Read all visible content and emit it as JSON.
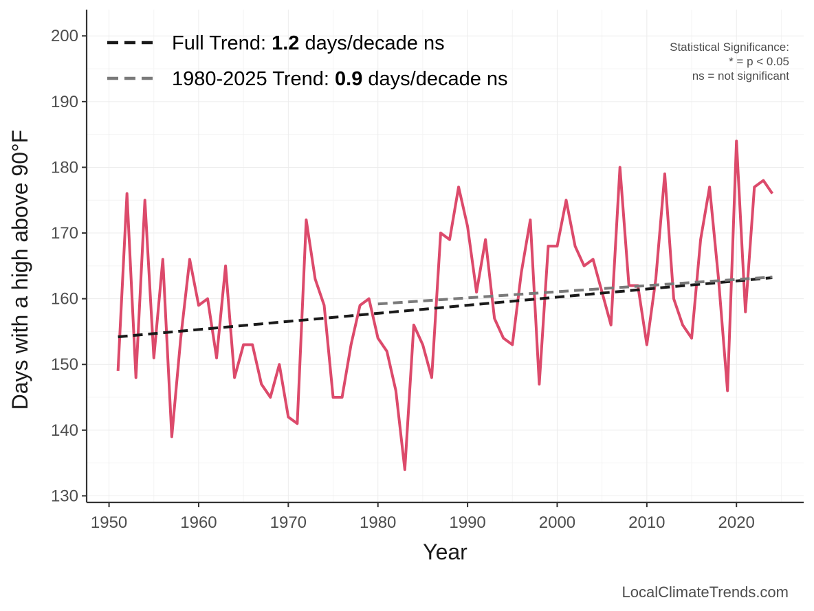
{
  "chart_data": {
    "type": "line",
    "xlabel": "Year",
    "ylabel": "Days with a high above 90°F",
    "xlim": [
      1947.5,
      2027.5
    ],
    "ylim": [
      129,
      204
    ],
    "x_ticks": [
      1950,
      1960,
      1970,
      1980,
      1990,
      2000,
      2010,
      2020
    ],
    "y_ticks": [
      130,
      140,
      150,
      160,
      170,
      180,
      190,
      200
    ],
    "grid": true,
    "legend_position": "top-left",
    "series": [
      {
        "kind": "observed",
        "color": "#dc4a6b",
        "x": [
          1951,
          1952,
          1953,
          1954,
          1955,
          1956,
          1957,
          1958,
          1959,
          1960,
          1961,
          1962,
          1963,
          1964,
          1965,
          1966,
          1967,
          1968,
          1969,
          1970,
          1971,
          1972,
          1973,
          1974,
          1975,
          1976,
          1977,
          1978,
          1979,
          1980,
          1981,
          1982,
          1983,
          1984,
          1985,
          1986,
          1987,
          1988,
          1989,
          1990,
          1991,
          1992,
          1993,
          1994,
          1995,
          1996,
          1997,
          1998,
          1999,
          2000,
          2001,
          2002,
          2003,
          2004,
          2005,
          2006,
          2007,
          2008,
          2009,
          2010,
          2011,
          2012,
          2013,
          2014,
          2015,
          2016,
          2017,
          2018,
          2019,
          2020,
          2021,
          2022,
          2023,
          2024
        ],
        "values": [
          149,
          176,
          148,
          175,
          151,
          166,
          139,
          154,
          166,
          159,
          160,
          151,
          165,
          148,
          153,
          153,
          147,
          145,
          150,
          142,
          141,
          172,
          163,
          159,
          145,
          145,
          153,
          159,
          160,
          154,
          152,
          146,
          134,
          156,
          153,
          148,
          170,
          169,
          177,
          171,
          161,
          169,
          157,
          154,
          153,
          164,
          172,
          147,
          168,
          168,
          175,
          168,
          165,
          166,
          161,
          156,
          180,
          162,
          162,
          153,
          163,
          179,
          160,
          156,
          154,
          169,
          177,
          163,
          146,
          184,
          158,
          177,
          178,
          176
        ]
      },
      {
        "kind": "trend",
        "name": "Full Trend",
        "color": "#1a1a1a",
        "dash": "dashed",
        "x": [
          1951,
          2024
        ],
        "values": [
          154.2,
          163.2
        ]
      },
      {
        "kind": "trend",
        "name": "1980-2025 Trend",
        "color": "#7a7a7a",
        "dash": "dashed",
        "x": [
          1980,
          2024
        ],
        "values": [
          159.2,
          163.3
        ]
      }
    ],
    "legend": [
      {
        "series_index": 1,
        "prefix": "Full Trend: ",
        "value": "1.2",
        "suffix": " days/decade ns"
      },
      {
        "series_index": 2,
        "prefix": "1980-2025 Trend: ",
        "value": "0.9",
        "suffix": " days/decade ns"
      }
    ],
    "annotation": {
      "lines": [
        "Statistical Significance:",
        "* = p < 0.05",
        "ns = not significant"
      ]
    },
    "credit": "LocalClimateTrends.com"
  }
}
